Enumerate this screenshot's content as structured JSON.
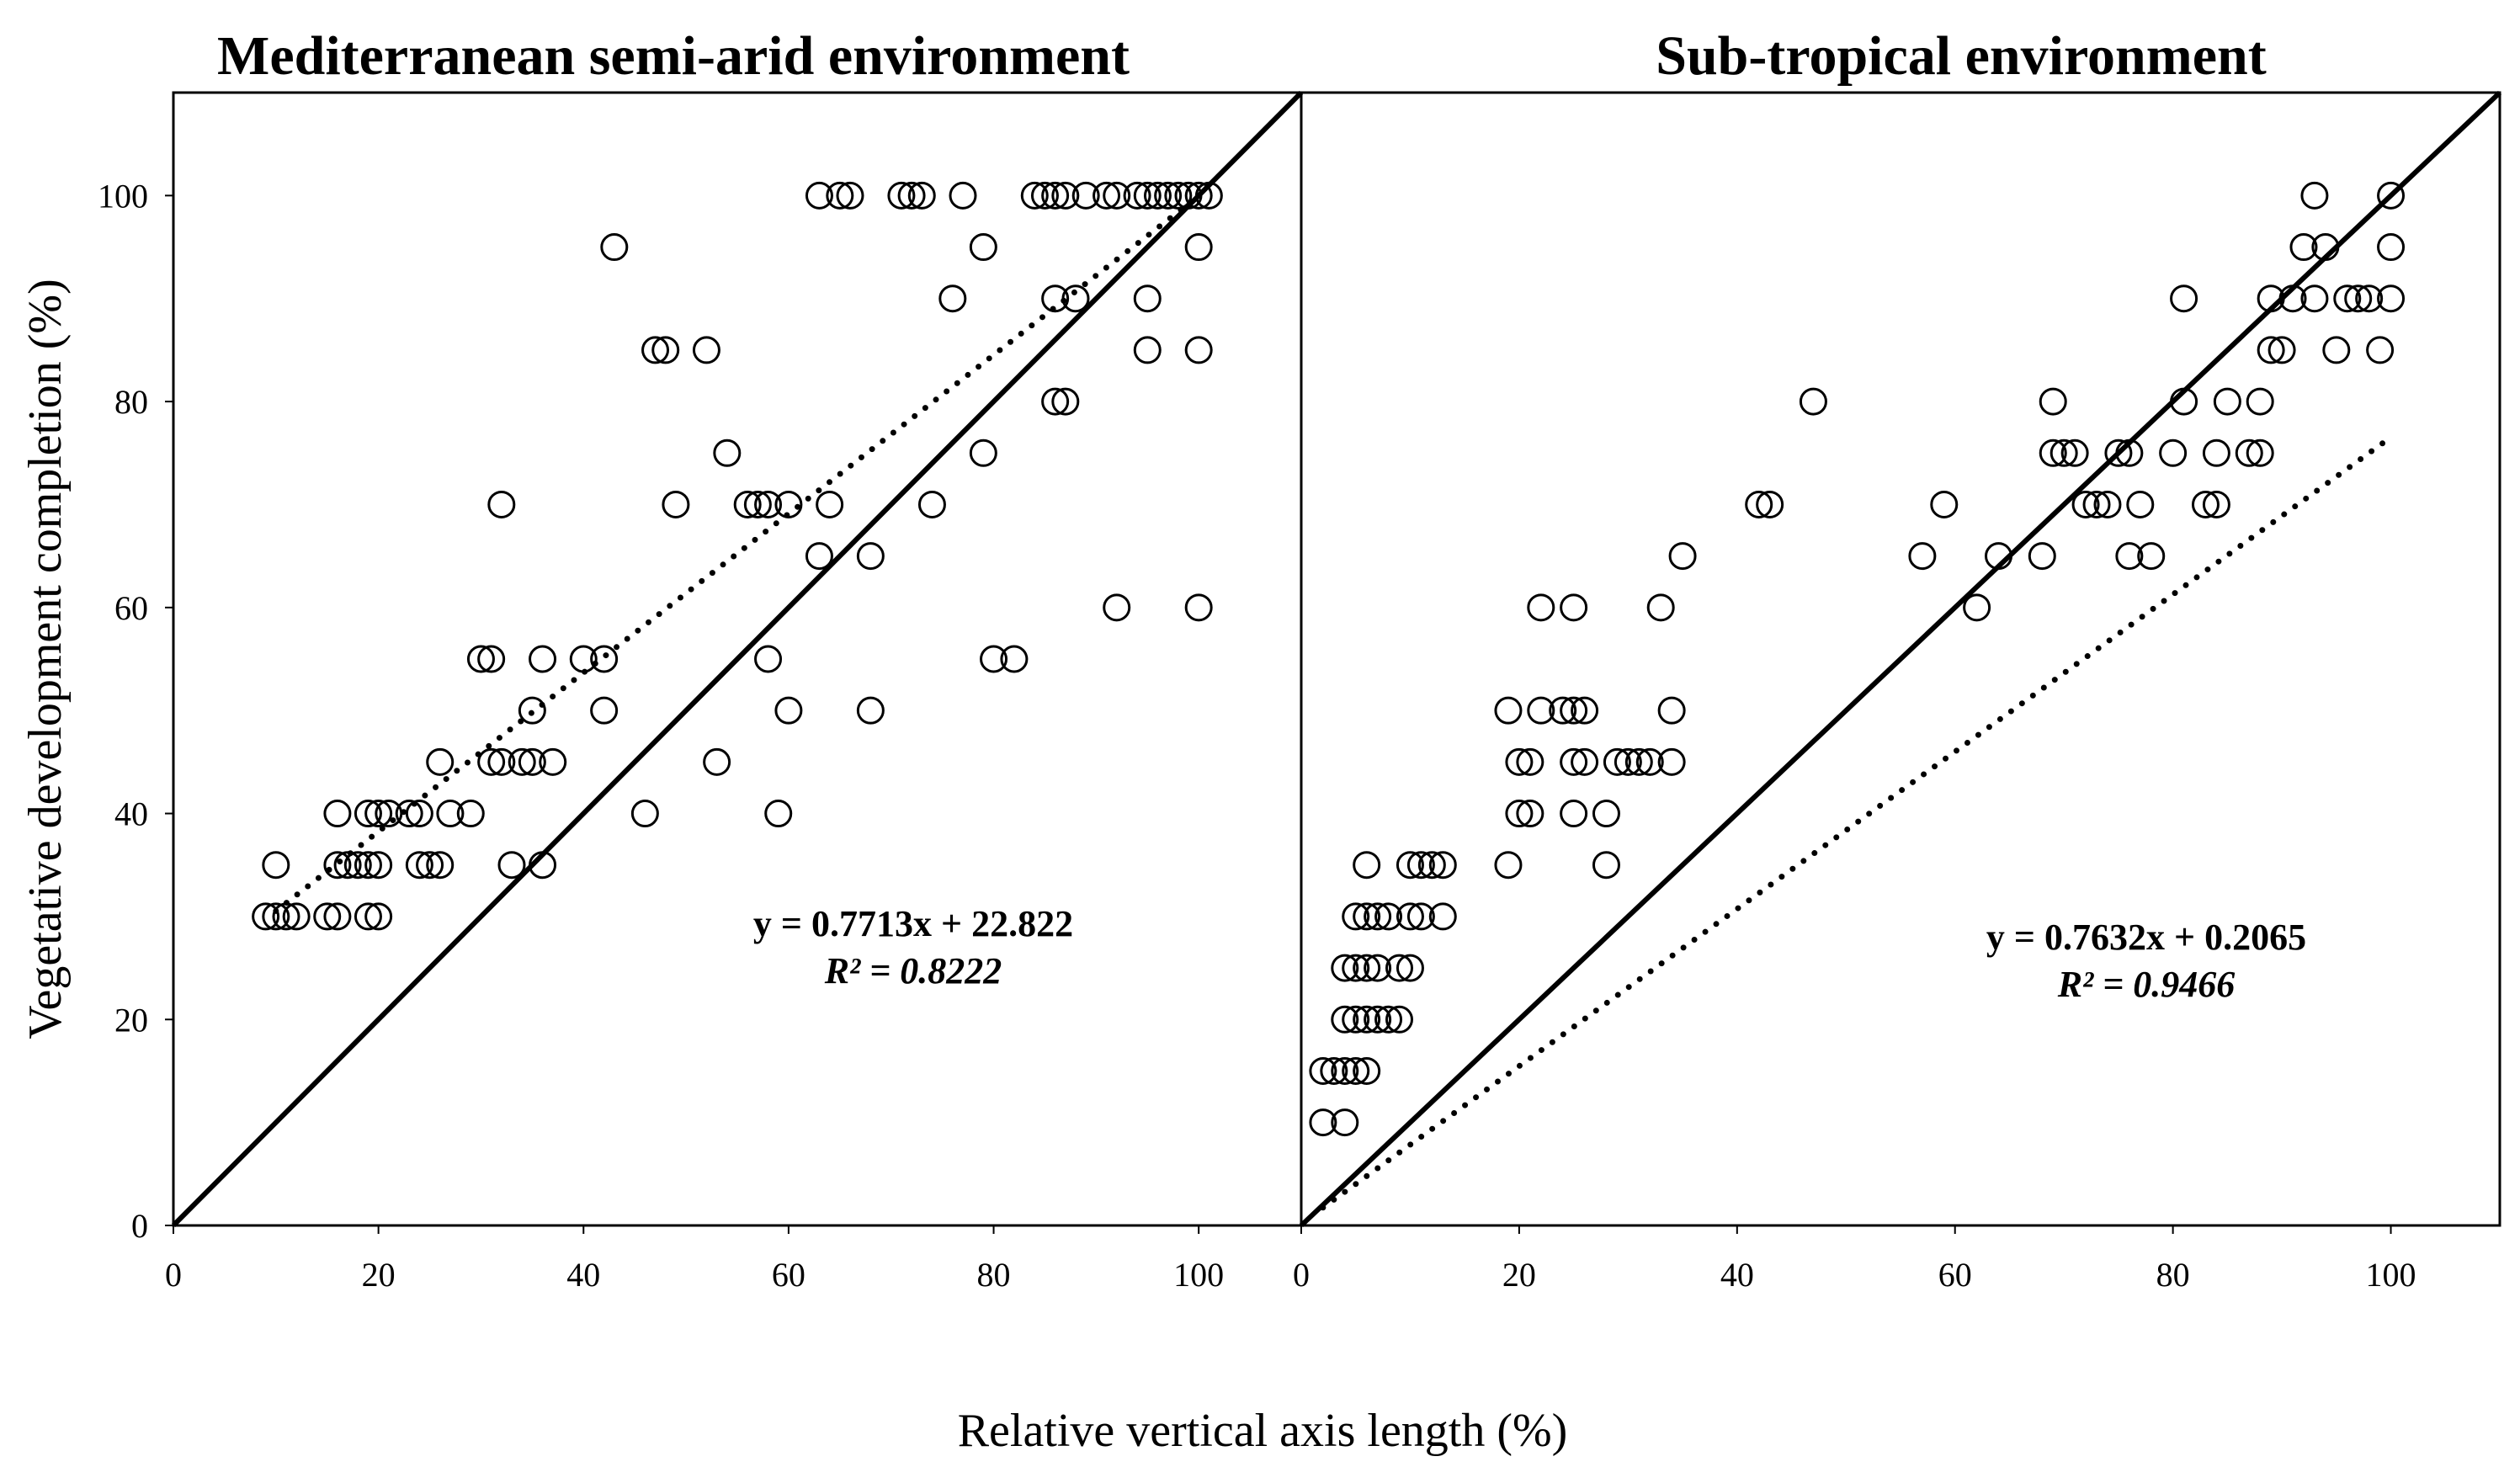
{
  "chart_data": [
    {
      "type": "scatter",
      "title": "Mediterranean semi-arid environment",
      "xlabel": "Relative vertical axis length (%)",
      "ylabel": "Vegetative development completion (%)",
      "xlim": [
        0,
        110
      ],
      "ylim": [
        0,
        110
      ],
      "xticks": [
        "0",
        "20",
        "40",
        "60",
        "80",
        "100"
      ],
      "yticks": [
        "0",
        "20",
        "40",
        "60",
        "80",
        "100"
      ],
      "grid": false,
      "equation": "y = 0.7713x + 22.822",
      "r2_label": "R² = 0.8222",
      "trendline": {
        "slope": 0.7713,
        "intercept": 22.822,
        "x_range": [
          10,
          100
        ],
        "style": "dotted"
      },
      "reference_line": {
        "label": "1:1",
        "x_range": [
          0,
          110
        ]
      },
      "points": [
        [
          9,
          30
        ],
        [
          10,
          35
        ],
        [
          10,
          30
        ],
        [
          11,
          30
        ],
        [
          12,
          30
        ],
        [
          15,
          30
        ],
        [
          16,
          30
        ],
        [
          16,
          35
        ],
        [
          16,
          40
        ],
        [
          17,
          35
        ],
        [
          18,
          35
        ],
        [
          19,
          35
        ],
        [
          19,
          30
        ],
        [
          19,
          40
        ],
        [
          20,
          40
        ],
        [
          20,
          35
        ],
        [
          20,
          30
        ],
        [
          21,
          40
        ],
        [
          23,
          40
        ],
        [
          24,
          40
        ],
        [
          24,
          35
        ],
        [
          25,
          35
        ],
        [
          26,
          35
        ],
        [
          26,
          45
        ],
        [
          27,
          40
        ],
        [
          29,
          40
        ],
        [
          30,
          55
        ],
        [
          31,
          55
        ],
        [
          31,
          45
        ],
        [
          32,
          70
        ],
        [
          32,
          45
        ],
        [
          33,
          35
        ],
        [
          34,
          45
        ],
        [
          35,
          45
        ],
        [
          35,
          50
        ],
        [
          36,
          55
        ],
        [
          36,
          35
        ],
        [
          37,
          45
        ],
        [
          40,
          55
        ],
        [
          42,
          50
        ],
        [
          42,
          55
        ],
        [
          43,
          95
        ],
        [
          46,
          40
        ],
        [
          47,
          85
        ],
        [
          48,
          85
        ],
        [
          49,
          70
        ],
        [
          52,
          85
        ],
        [
          53,
          45
        ],
        [
          54,
          75
        ],
        [
          56,
          70
        ],
        [
          57,
          70
        ],
        [
          58,
          55
        ],
        [
          58,
          70
        ],
        [
          59,
          40
        ],
        [
          60,
          50
        ],
        [
          60,
          70
        ],
        [
          63,
          65
        ],
        [
          63,
          100
        ],
        [
          64,
          70
        ],
        [
          65,
          100
        ],
        [
          66,
          100
        ],
        [
          68,
          50
        ],
        [
          68,
          65
        ],
        [
          71,
          100
        ],
        [
          72,
          100
        ],
        [
          73,
          100
        ],
        [
          74,
          70
        ],
        [
          76,
          90
        ],
        [
          77,
          100
        ],
        [
          79,
          95
        ],
        [
          79,
          75
        ],
        [
          80,
          55
        ],
        [
          82,
          55
        ],
        [
          84,
          100
        ],
        [
          85,
          100
        ],
        [
          86,
          100
        ],
        [
          86,
          90
        ],
        [
          86,
          80
        ],
        [
          87,
          80
        ],
        [
          87,
          100
        ],
        [
          88,
          90
        ],
        [
          89,
          100
        ],
        [
          91,
          100
        ],
        [
          92,
          60
        ],
        [
          92,
          100
        ],
        [
          94,
          100
        ],
        [
          95,
          100
        ],
        [
          95,
          85
        ],
        [
          95,
          90
        ],
        [
          96,
          100
        ],
        [
          97,
          100
        ],
        [
          98,
          100
        ],
        [
          99,
          100
        ],
        [
          100,
          100
        ],
        [
          100,
          95
        ],
        [
          100,
          85
        ],
        [
          100,
          60
        ],
        [
          101,
          100
        ]
      ]
    },
    {
      "type": "scatter",
      "title": "Sub-tropical environment",
      "xlabel": "Relative vertical axis length (%)",
      "ylabel": "",
      "xlim": [
        0,
        110
      ],
      "ylim": [
        0,
        110
      ],
      "xticks": [
        "0",
        "20",
        "40",
        "60",
        "80",
        "100"
      ],
      "yticks": [],
      "grid": false,
      "equation": "y = 0.7632x + 0.2065",
      "r2_label": "R² = 0.9466",
      "trendline": {
        "slope": 0.7632,
        "intercept": 0.2065,
        "x_range": [
          2,
          100
        ],
        "style": "dotted"
      },
      "reference_line": {
        "label": "1:1",
        "x_range": [
          0,
          110
        ]
      },
      "points": [
        [
          2,
          10
        ],
        [
          4,
          10
        ],
        [
          2,
          15
        ],
        [
          3,
          15
        ],
        [
          4,
          15
        ],
        [
          5,
          15
        ],
        [
          6,
          15
        ],
        [
          4,
          20
        ],
        [
          5,
          20
        ],
        [
          6,
          20
        ],
        [
          7,
          20
        ],
        [
          8,
          20
        ],
        [
          9,
          20
        ],
        [
          4,
          25
        ],
        [
          5,
          25
        ],
        [
          6,
          25
        ],
        [
          7,
          25
        ],
        [
          9,
          25
        ],
        [
          10,
          25
        ],
        [
          5,
          30
        ],
        [
          6,
          30
        ],
        [
          7,
          30
        ],
        [
          8,
          30
        ],
        [
          10,
          30
        ],
        [
          11,
          30
        ],
        [
          13,
          30
        ],
        [
          6,
          35
        ],
        [
          10,
          35
        ],
        [
          11,
          35
        ],
        [
          12,
          35
        ],
        [
          13,
          35
        ],
        [
          19,
          35
        ],
        [
          28,
          35
        ],
        [
          19,
          50
        ],
        [
          20,
          45
        ],
        [
          21,
          45
        ],
        [
          20,
          40
        ],
        [
          21,
          40
        ],
        [
          22,
          50
        ],
        [
          22,
          60
        ],
        [
          24,
          50
        ],
        [
          25,
          50
        ],
        [
          25,
          45
        ],
        [
          25,
          40
        ],
        [
          25,
          60
        ],
        [
          26,
          50
        ],
        [
          26,
          45
        ],
        [
          28,
          40
        ],
        [
          29,
          45
        ],
        [
          30,
          45
        ],
        [
          31,
          45
        ],
        [
          32,
          45
        ],
        [
          33,
          60
        ],
        [
          34,
          45
        ],
        [
          34,
          50
        ],
        [
          35,
          65
        ],
        [
          42,
          70
        ],
        [
          43,
          70
        ],
        [
          47,
          80
        ],
        [
          57,
          65
        ],
        [
          59,
          70
        ],
        [
          62,
          60
        ],
        [
          64,
          65
        ],
        [
          68,
          65
        ],
        [
          69,
          75
        ],
        [
          69,
          80
        ],
        [
          70,
          75
        ],
        [
          71,
          75
        ],
        [
          72,
          70
        ],
        [
          73,
          70
        ],
        [
          74,
          70
        ],
        [
          75,
          75
        ],
        [
          76,
          65
        ],
        [
          76,
          75
        ],
        [
          77,
          70
        ],
        [
          78,
          65
        ],
        [
          80,
          75
        ],
        [
          81,
          80
        ],
        [
          81,
          90
        ],
        [
          83,
          70
        ],
        [
          84,
          70
        ],
        [
          84,
          75
        ],
        [
          85,
          80
        ],
        [
          87,
          75
        ],
        [
          88,
          80
        ],
        [
          88,
          75
        ],
        [
          89,
          85
        ],
        [
          89,
          90
        ],
        [
          90,
          85
        ],
        [
          91,
          90
        ],
        [
          92,
          95
        ],
        [
          93,
          90
        ],
        [
          93,
          100
        ],
        [
          94,
          95
        ],
        [
          95,
          85
        ],
        [
          96,
          90
        ],
        [
          97,
          90
        ],
        [
          98,
          90
        ],
        [
          99,
          85
        ],
        [
          100,
          95
        ],
        [
          100,
          100
        ],
        [
          100,
          90
        ]
      ]
    }
  ]
}
